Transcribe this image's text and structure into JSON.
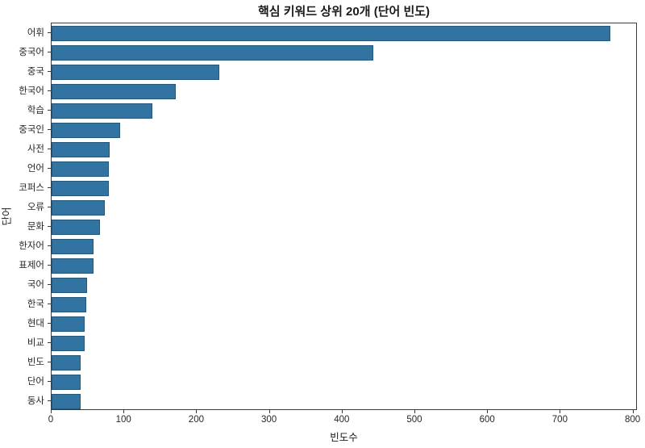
{
  "chart_data": {
    "type": "bar",
    "orientation": "horizontal",
    "title": "핵심 키워드 상위 20개 (단어 빈도)",
    "xlabel": "빈도수",
    "ylabel": "단어",
    "categories": [
      "어휘",
      "중국어",
      "중국",
      "한국어",
      "학습",
      "중국인",
      "사전",
      "언어",
      "코퍼스",
      "오류",
      "문화",
      "한자어",
      "표제어",
      "국어",
      "한국",
      "현대",
      "비교",
      "빈도",
      "단어",
      "동사"
    ],
    "values": [
      768,
      442,
      231,
      171,
      139,
      94,
      80,
      79,
      79,
      73,
      66,
      58,
      58,
      49,
      48,
      45,
      45,
      40,
      40,
      40
    ],
    "xticks": [
      0,
      100,
      200,
      300,
      400,
      500,
      600,
      700,
      800
    ],
    "xlim": [
      0,
      806
    ],
    "grid": false,
    "legend": null,
    "bar_color": "#3274a1",
    "bar_edge_color": "#26577c",
    "spine_color": "#3a3a3a"
  }
}
